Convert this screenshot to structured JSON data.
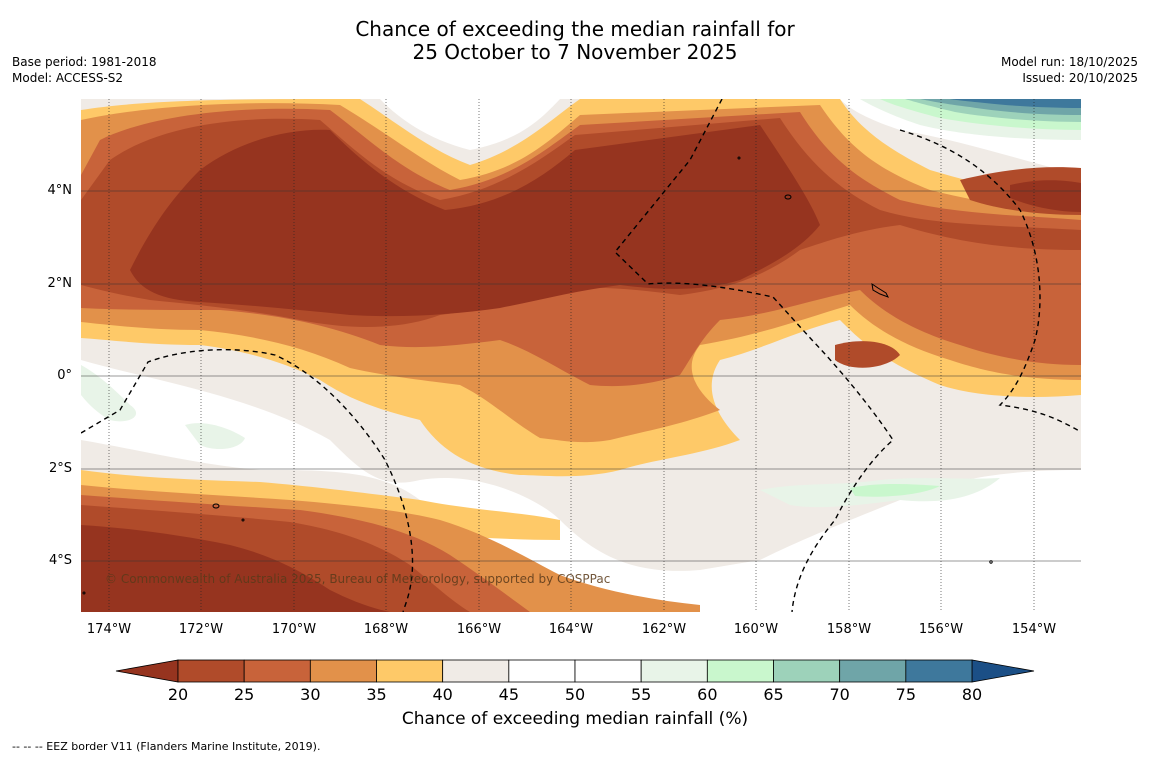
{
  "title": {
    "line1": "Chance of exceeding the median rainfall for",
    "line2": "25 October to 7 November 2025"
  },
  "meta_left": {
    "base_period": "Base period: 1981-2018",
    "model": "Model: ACCESS-S2"
  },
  "meta_right": {
    "model_run": "Model run: 18/10/2025",
    "issued": "Issued: 20/10/2025"
  },
  "credit": "© Commonwealth of Australia 2025, Bureau of Meteorology, supported by COSPPac",
  "lat_labels": [
    "4°N",
    "2°N",
    "0°",
    "2°S",
    "4°S"
  ],
  "lon_labels": [
    "174°W",
    "172°W",
    "170°W",
    "168°W",
    "166°W",
    "164°W",
    "162°W",
    "160°W",
    "158°W",
    "156°W",
    "154°W"
  ],
  "colorbar": {
    "ticks": [
      "20",
      "25",
      "30",
      "35",
      "40",
      "45",
      "50",
      "55",
      "60",
      "65",
      "70",
      "75",
      "80"
    ],
    "colors": [
      "#96341f",
      "#b04b2a",
      "#c8633a",
      "#e2914a",
      "#fec968",
      "#f0ebe6",
      "#ffffff",
      "#ffffff",
      "#e8f4e8",
      "#c9f7cd",
      "#9dd2ba",
      "#6fa5a8",
      "#3e789c",
      "#1b4f86"
    ],
    "label": "Chance of exceeding median rainfall (%)"
  },
  "footnote": "--  --  -- EEZ border V11 (Flanders Marine Institute, 2019)."
}
